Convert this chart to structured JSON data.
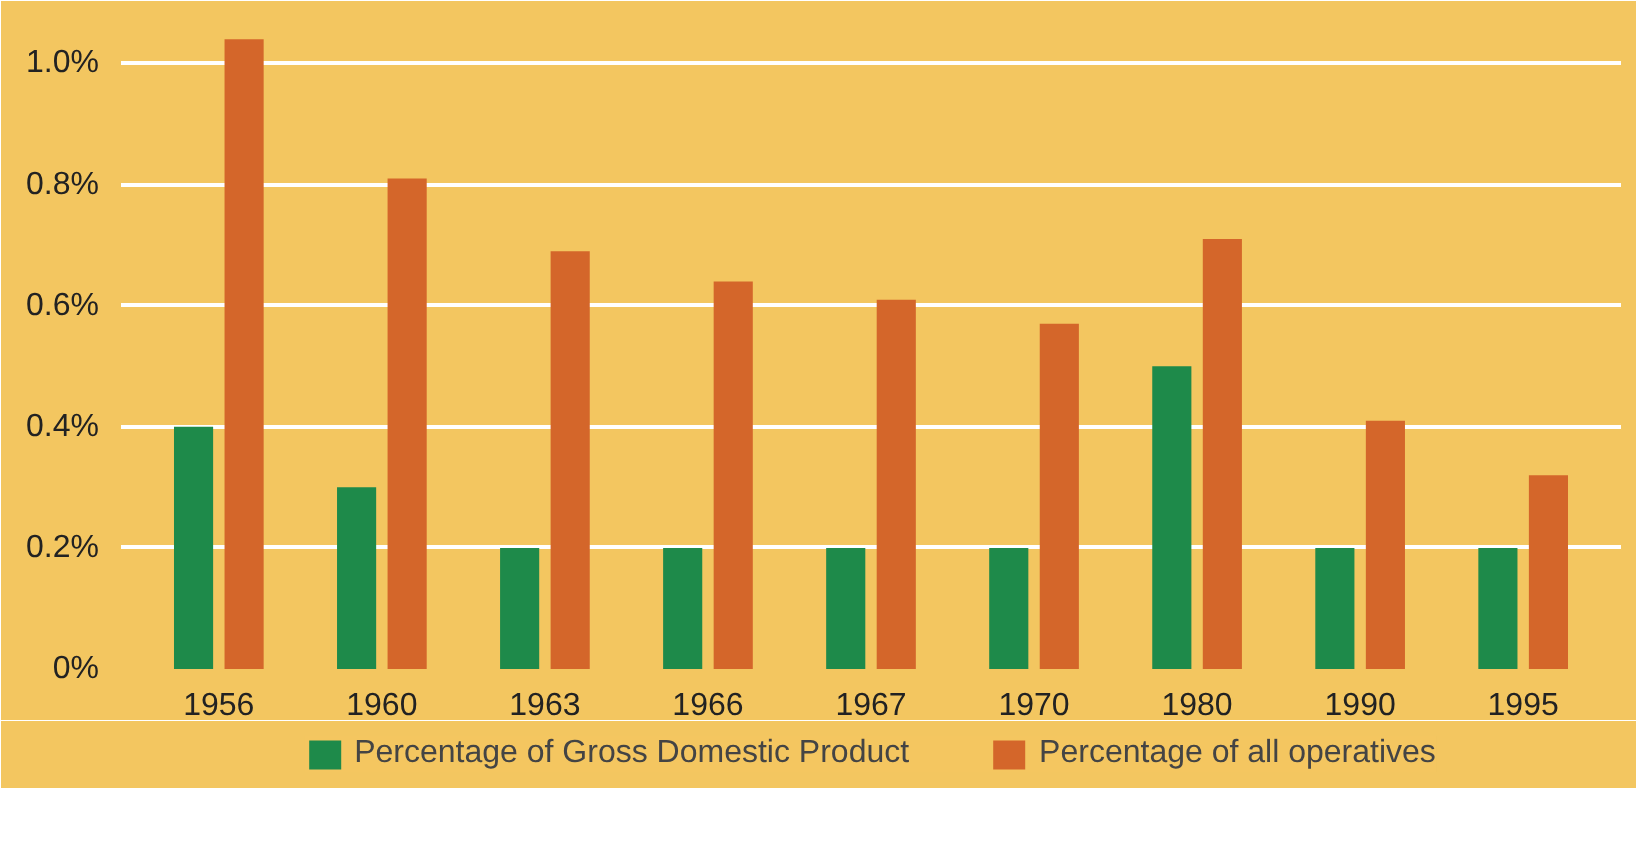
{
  "chart_data": {
    "type": "bar",
    "categories": [
      "1956",
      "1960",
      "1963",
      "1966",
      "1967",
      "1970",
      "1980",
      "1990",
      "1995"
    ],
    "series": [
      {
        "name": "Percentage of Gross Domestic Product",
        "color": "#1e8a4a",
        "values": [
          0.4,
          0.3,
          0.2,
          0.2,
          0.2,
          0.2,
          0.5,
          0.2,
          0.2
        ]
      },
      {
        "name": "Percentage of all operatives",
        "color": "#d4662a",
        "values": [
          1.04,
          0.81,
          0.69,
          0.64,
          0.61,
          0.57,
          0.71,
          0.41,
          0.32
        ]
      }
    ],
    "ylim": [
      0,
      1.09
    ],
    "yticks": [
      {
        "value": 0,
        "label": "0%"
      },
      {
        "value": 0.2,
        "label": "0.2%"
      },
      {
        "value": 0.4,
        "label": "0.4%"
      },
      {
        "value": 0.6,
        "label": "0.6%"
      },
      {
        "value": 0.8,
        "label": "0.8%"
      },
      {
        "value": 1.0,
        "label": "1.0%"
      }
    ],
    "grid": "y",
    "legend": "bottom"
  }
}
